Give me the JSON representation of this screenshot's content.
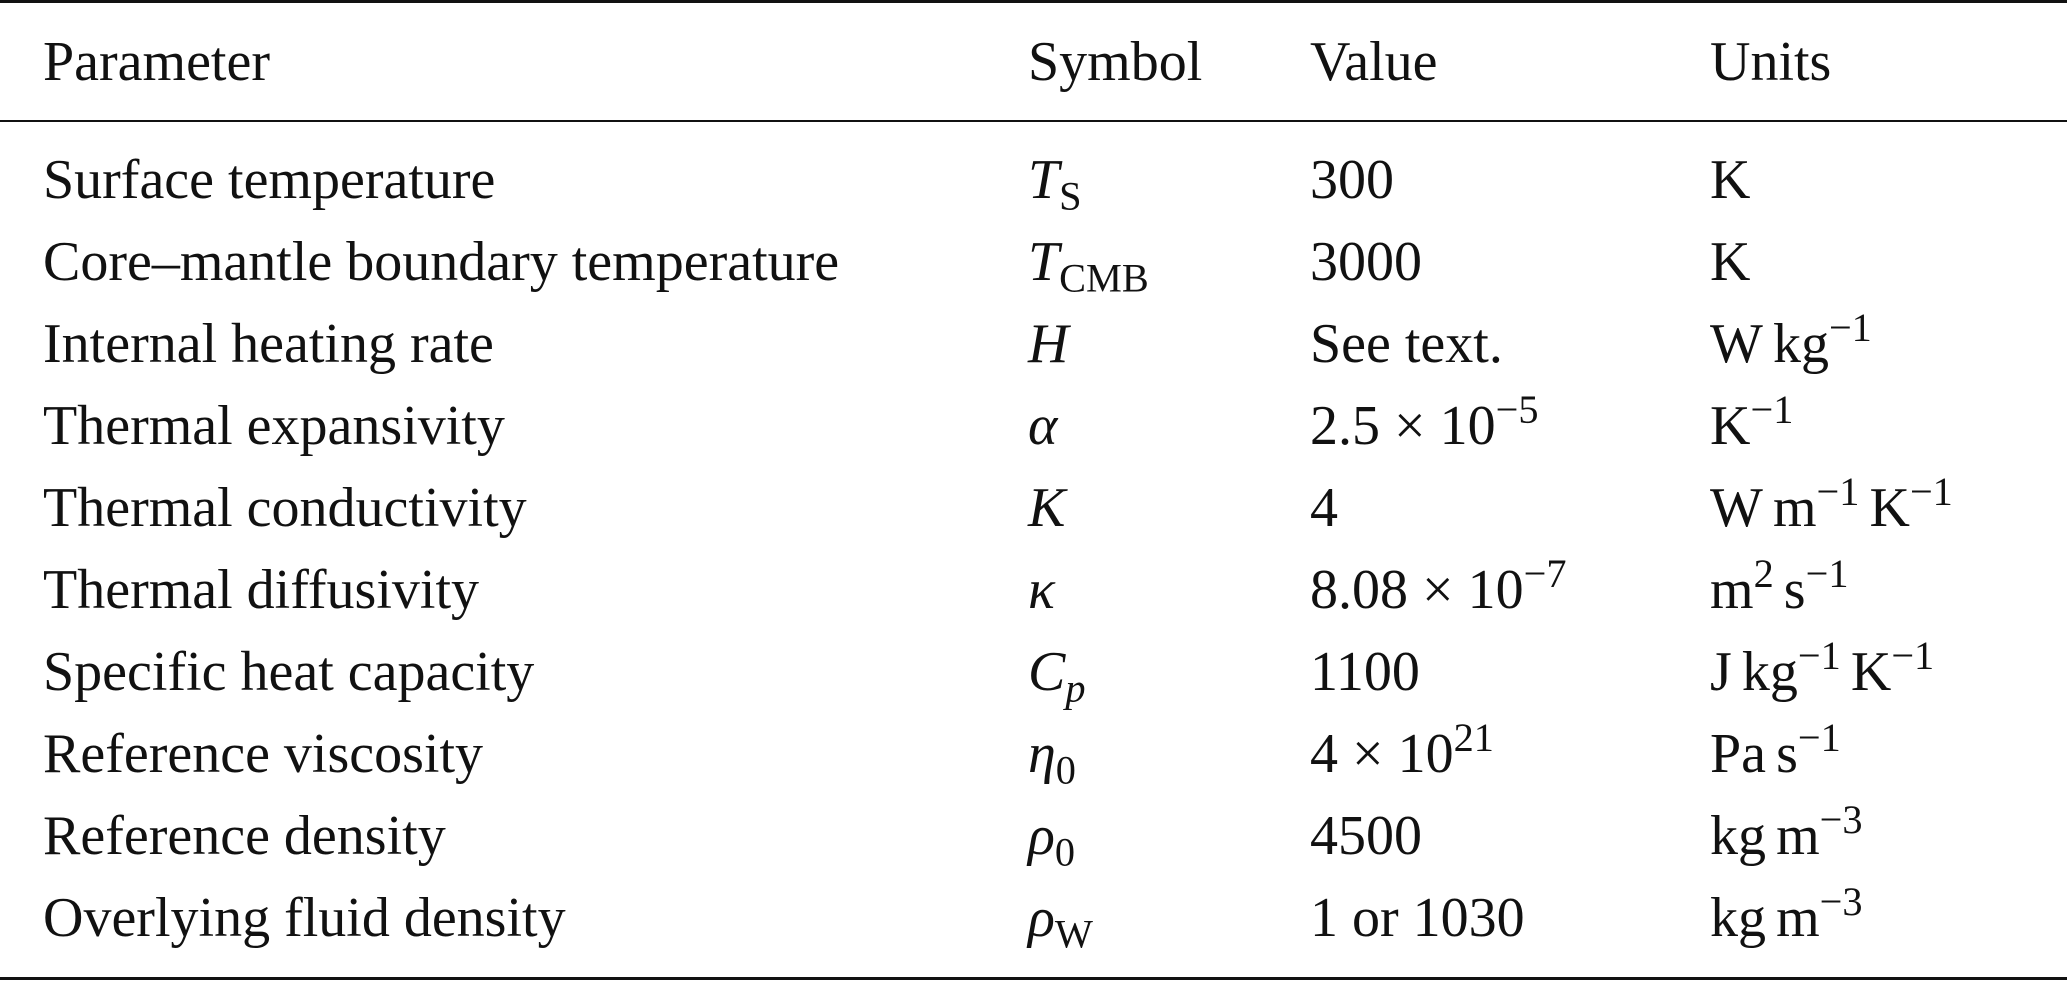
{
  "table": {
    "headers": {
      "parameter": "Parameter",
      "symbol": "Symbol",
      "value": "Value",
      "units": "Units"
    },
    "rows": [
      {
        "parameter": "Surface temperature",
        "symbol": {
          "base": "T",
          "sub": "S"
        },
        "value": {
          "text": "300"
        },
        "units": [
          {
            "b": "K"
          }
        ]
      },
      {
        "parameter": "Core–mantle boundary temperature",
        "symbol": {
          "base": "T",
          "sub": "CMB"
        },
        "value": {
          "text": "3000"
        },
        "units": [
          {
            "b": "K"
          }
        ]
      },
      {
        "parameter": "Internal heating rate",
        "symbol": {
          "base": "H",
          "sub": ""
        },
        "value": {
          "text": "See text."
        },
        "units": [
          {
            "b": "W"
          },
          {
            "b": "kg",
            "sup": "−1"
          }
        ]
      },
      {
        "parameter": "Thermal expansivity",
        "symbol": {
          "base": "α",
          "sub": ""
        },
        "value": {
          "mant": "2.5",
          "exp": "−5"
        },
        "units": [
          {
            "b": "K",
            "sup": "−1"
          }
        ]
      },
      {
        "parameter": "Thermal conductivity",
        "symbol": {
          "base": "K",
          "sub": ""
        },
        "value": {
          "text": "4"
        },
        "units": [
          {
            "b": "W"
          },
          {
            "b": "m",
            "sup": "−1"
          },
          {
            "b": "K",
            "sup": "−1"
          }
        ]
      },
      {
        "parameter": "Thermal diffusivity",
        "symbol": {
          "base": "κ",
          "sub": ""
        },
        "value": {
          "mant": "8.08",
          "exp": "−7"
        },
        "units": [
          {
            "b": "m",
            "sup": "2"
          },
          {
            "b": "s",
            "sup": "−1"
          }
        ]
      },
      {
        "parameter": "Specific heat capacity",
        "symbol": {
          "base": "C",
          "sub": "p",
          "subItalic": true
        },
        "value": {
          "text": "1100"
        },
        "units": [
          {
            "b": "J"
          },
          {
            "b": "kg",
            "sup": "−1"
          },
          {
            "b": "K",
            "sup": "−1"
          }
        ]
      },
      {
        "parameter": "Reference viscosity",
        "symbol": {
          "base": "η",
          "sub": "0"
        },
        "value": {
          "mant": "4",
          "exp": "21"
        },
        "units": [
          {
            "b": "Pa"
          },
          {
            "b": "s",
            "sup": "−1"
          }
        ]
      },
      {
        "parameter": "Reference density",
        "symbol": {
          "base": "ρ",
          "sub": "0"
        },
        "value": {
          "text": "4500"
        },
        "units": [
          {
            "b": "kg"
          },
          {
            "b": "m",
            "sup": "−3"
          }
        ]
      },
      {
        "parameter": "Overlying fluid density",
        "symbol": {
          "base": "ρ",
          "sub": "W"
        },
        "value": {
          "text": "1 or 1030"
        },
        "units": [
          {
            "b": "kg"
          },
          {
            "b": "m",
            "sup": "−3"
          }
        ]
      }
    ]
  }
}
